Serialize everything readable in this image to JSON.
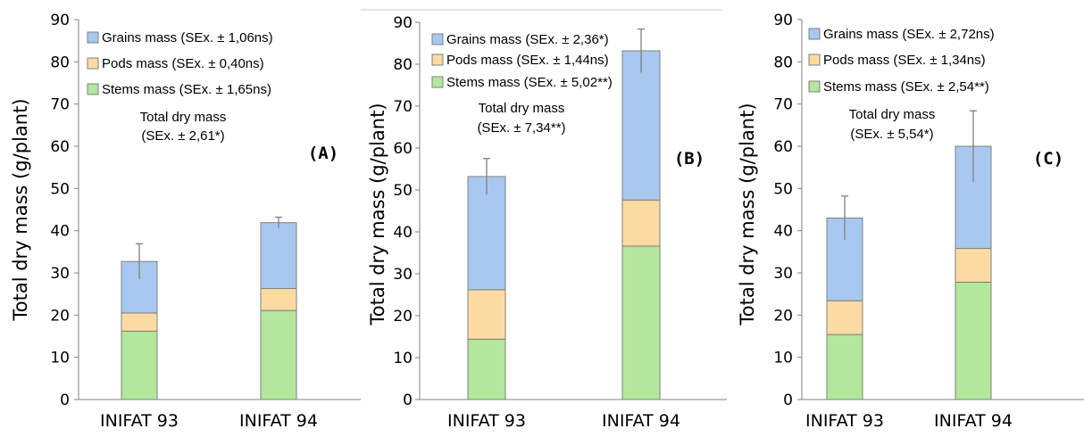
{
  "colors": {
    "stems": "#b3e79b",
    "pods": "#fcdba3",
    "grains": "#a9c8ef",
    "bar_stroke": "#7f7f7f",
    "axis": "#808080",
    "error_bar": "#808080"
  },
  "chart_data": [
    {
      "type": "bar",
      "stacked": true,
      "panel_label": "(A)",
      "ylabel": "Total dry mass (g/plant)",
      "ylim": [
        0,
        90
      ],
      "yticks": [
        0,
        10,
        20,
        30,
        40,
        50,
        60,
        70,
        80,
        90
      ],
      "categories": [
        "INIFAT 93",
        "INIFAT 94"
      ],
      "series": [
        {
          "name": "Stems mass (SEx. ± 1,65ns)",
          "key": "stems",
          "values": [
            16.2,
            21.1
          ]
        },
        {
          "name": "Pods mass (SEx. ± 0,40ns)",
          "key": "pods",
          "values": [
            4.3,
            5.2
          ]
        },
        {
          "name": "Grains mass (SEx. ± 1,06ns)",
          "key": "grains",
          "values": [
            12.2,
            15.6
          ]
        }
      ],
      "totals": [
        32.7,
        41.9
      ],
      "error_bars": [
        4.2,
        1.3
      ],
      "annotation": [
        "Total dry mass",
        "(SEx. ± 2,61*)"
      ],
      "grid": false,
      "legend_position": "top-left"
    },
    {
      "type": "bar",
      "stacked": true,
      "panel_label": "(B)",
      "ylabel": "Total dry mass (g/plant)",
      "ylim": [
        0,
        90
      ],
      "yticks": [
        0,
        10,
        20,
        30,
        40,
        50,
        60,
        70,
        80,
        90
      ],
      "categories": [
        "INIFAT 93",
        "INIFAT 94"
      ],
      "series": [
        {
          "name": "Stems mass (SEx. ± 5,02**)",
          "key": "stems",
          "values": [
            14.4,
            36.6
          ]
        },
        {
          "name": "Pods mass (SEx. ± 1,44ns)",
          "key": "pods",
          "values": [
            11.8,
            11.0
          ]
        },
        {
          "name": "Grains mass (SEx. ± 2,36*)",
          "key": "grains",
          "values": [
            27.0,
            35.6
          ]
        }
      ],
      "totals": [
        53.2,
        83.2
      ],
      "error_bars": [
        4.3,
        5.2
      ],
      "annotation": [
        "Total dry mass",
        "(SEx. ± 7,34**)"
      ],
      "grid": false,
      "legend_position": "top-left"
    },
    {
      "type": "bar",
      "stacked": true,
      "panel_label": "(C)",
      "ylabel": "Total dry mass (g/plant)",
      "ylim": [
        0,
        90
      ],
      "yticks": [
        0,
        10,
        20,
        30,
        40,
        50,
        60,
        70,
        80,
        90
      ],
      "categories": [
        "INIFAT 93",
        "INIFAT 94"
      ],
      "series": [
        {
          "name": "Stems mass (SEx. ± 2,54**)",
          "key": "stems",
          "values": [
            15.4,
            27.8
          ]
        },
        {
          "name": "Pods mass (SEx. ± 1,34ns)",
          "key": "pods",
          "values": [
            8.0,
            8.0
          ]
        },
        {
          "name": "Grains mass (SEx. ± 2,72ns)",
          "key": "grains",
          "values": [
            19.6,
            24.2
          ]
        }
      ],
      "totals": [
        43.0,
        60.0
      ],
      "error_bars": [
        5.2,
        8.4
      ],
      "annotation": [
        "Total dry mass",
        "(SEx. ± 5,54*)"
      ],
      "grid": false,
      "legend_position": "top-left"
    }
  ]
}
